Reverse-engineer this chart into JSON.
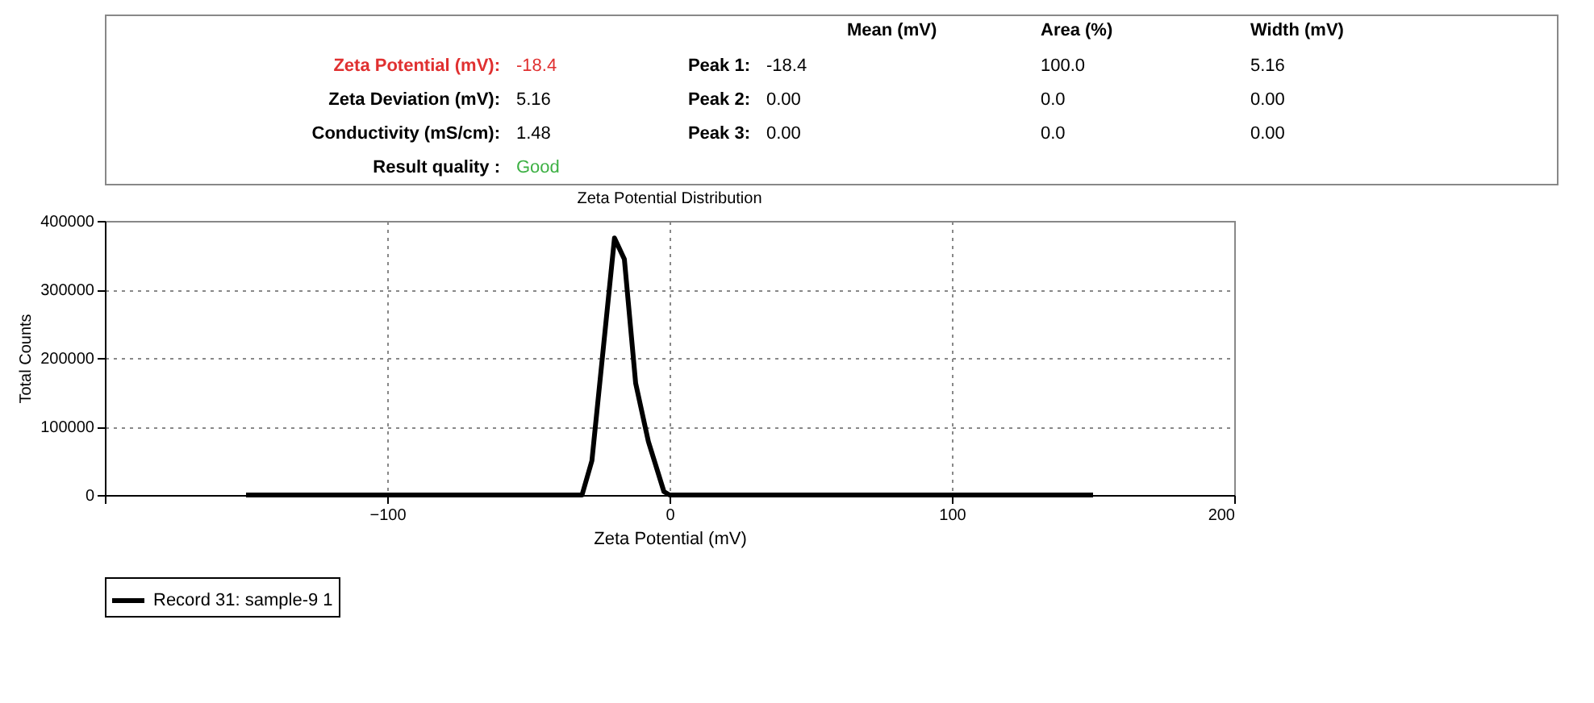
{
  "chart_data": {
    "type": "line",
    "title": "Zeta Potential Distribution",
    "xlabel": "Zeta Potential (mV)",
    "ylabel": "Total Counts",
    "annotations": [
      "Mean (mV)",
      "Area (%)",
      "Width (mV)",
      "Zeta Potential (mV):",
      "-18.4",
      "Peak 1:",
      "-18.4",
      "100.0",
      "5.16",
      "Zeta Deviation (mV):",
      "5.16",
      "Peak 2:",
      "0.00",
      "0.0",
      "0.00",
      "Conductivity (mS/cm):",
      "1.48",
      "Peak 3:",
      "0.00",
      "0.0",
      "0.00",
      "Result quality :",
      "Good"
    ],
    "x": [
      -150,
      -31,
      -27.5,
      -19.5,
      -16,
      -12,
      -7.5,
      -2,
      0,
      150
    ],
    "series": [
      {
        "name": "Record 31: sample-9 1",
        "color": "#000000",
        "values": [
          0,
          0,
          50000,
          375000,
          344000,
          163000,
          78000,
          5000,
          0,
          0
        ]
      }
    ],
    "xlim": [
      -200,
      200
    ],
    "xticks": [
      {
        "value": -200,
        "label": null
      },
      -100,
      0,
      100,
      200
    ],
    "ylim": [
      0,
      400000
    ],
    "yticks": [
      0,
      100000,
      200000,
      300000,
      400000
    ],
    "grid": true,
    "legend": "bottom",
    "marker": "none",
    "line_style": "solid"
  }
}
